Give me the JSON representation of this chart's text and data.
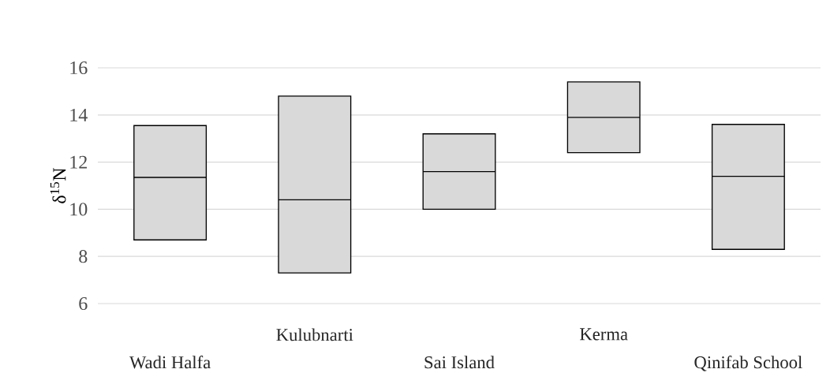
{
  "chart_data": {
    "type": "box",
    "ylabel": "δ$^{15}$N",
    "categories": [
      "Wadi Halfa",
      "Kulubnarti",
      "Sai Island",
      "Kerma",
      "Qinifab School"
    ],
    "boxes": [
      {
        "low": 8.7,
        "q1": 8.7,
        "median": 11.35,
        "q3": 13.55,
        "high": 13.55
      },
      {
        "low": 7.3,
        "q1": 7.3,
        "median": 10.4,
        "q3": 14.8,
        "high": 14.8
      },
      {
        "low": 10.0,
        "q1": 10.0,
        "median": 11.6,
        "q3": 13.2,
        "high": 13.2
      },
      {
        "low": 12.4,
        "q1": 12.4,
        "median": 13.9,
        "q3": 15.4,
        "high": 15.4
      },
      {
        "low": 8.3,
        "q1": 8.3,
        "median": 11.4,
        "q3": 13.6,
        "high": 13.6
      }
    ],
    "color": "#d9d9d9",
    "ylim": [
      6,
      16
    ],
    "yticks": [
      6,
      8,
      10,
      12,
      14,
      16
    ],
    "grid": "y"
  }
}
